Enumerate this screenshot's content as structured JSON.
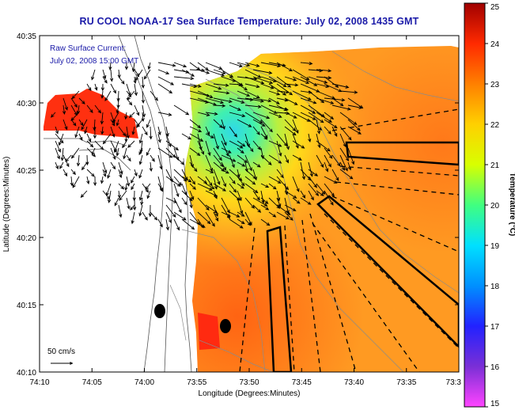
{
  "title": "RU COOL  NOAA-17  Sea Surface Temperature:  July 02, 2008 1435 GMT",
  "inset": {
    "line1": "Raw Surface Current:",
    "line2": "July 02, 2008 15:00 GMT"
  },
  "scale_label": "50 cm/s",
  "xlabel": "Longitude (Degrees:Minutes)",
  "ylabel": "Latitude (Degrees:Minutes)",
  "x_ticks": [
    "74:10",
    "74:05",
    "74:00",
    "73:55",
    "73:50",
    "73:45",
    "73:40",
    "73:35",
    "73:3"
  ],
  "y_ticks": [
    "40:35",
    "40:30",
    "40:25",
    "40:20",
    "40:15",
    "40:10"
  ],
  "colorbar": {
    "label": "Temperature (°C)",
    "range": [
      15,
      25
    ],
    "ticks": [
      "25",
      "24",
      "23",
      "22",
      "21",
      "20",
      "19",
      "18",
      "17",
      "16",
      "15"
    ],
    "stops": [
      "#ff44ff",
      "#7a2fd6",
      "#2222ff",
      "#0090ff",
      "#00e0ff",
      "#40ff80",
      "#d8ff00",
      "#ffd000",
      "#ff8000",
      "#ff2a00",
      "#a00000"
    ]
  }
}
